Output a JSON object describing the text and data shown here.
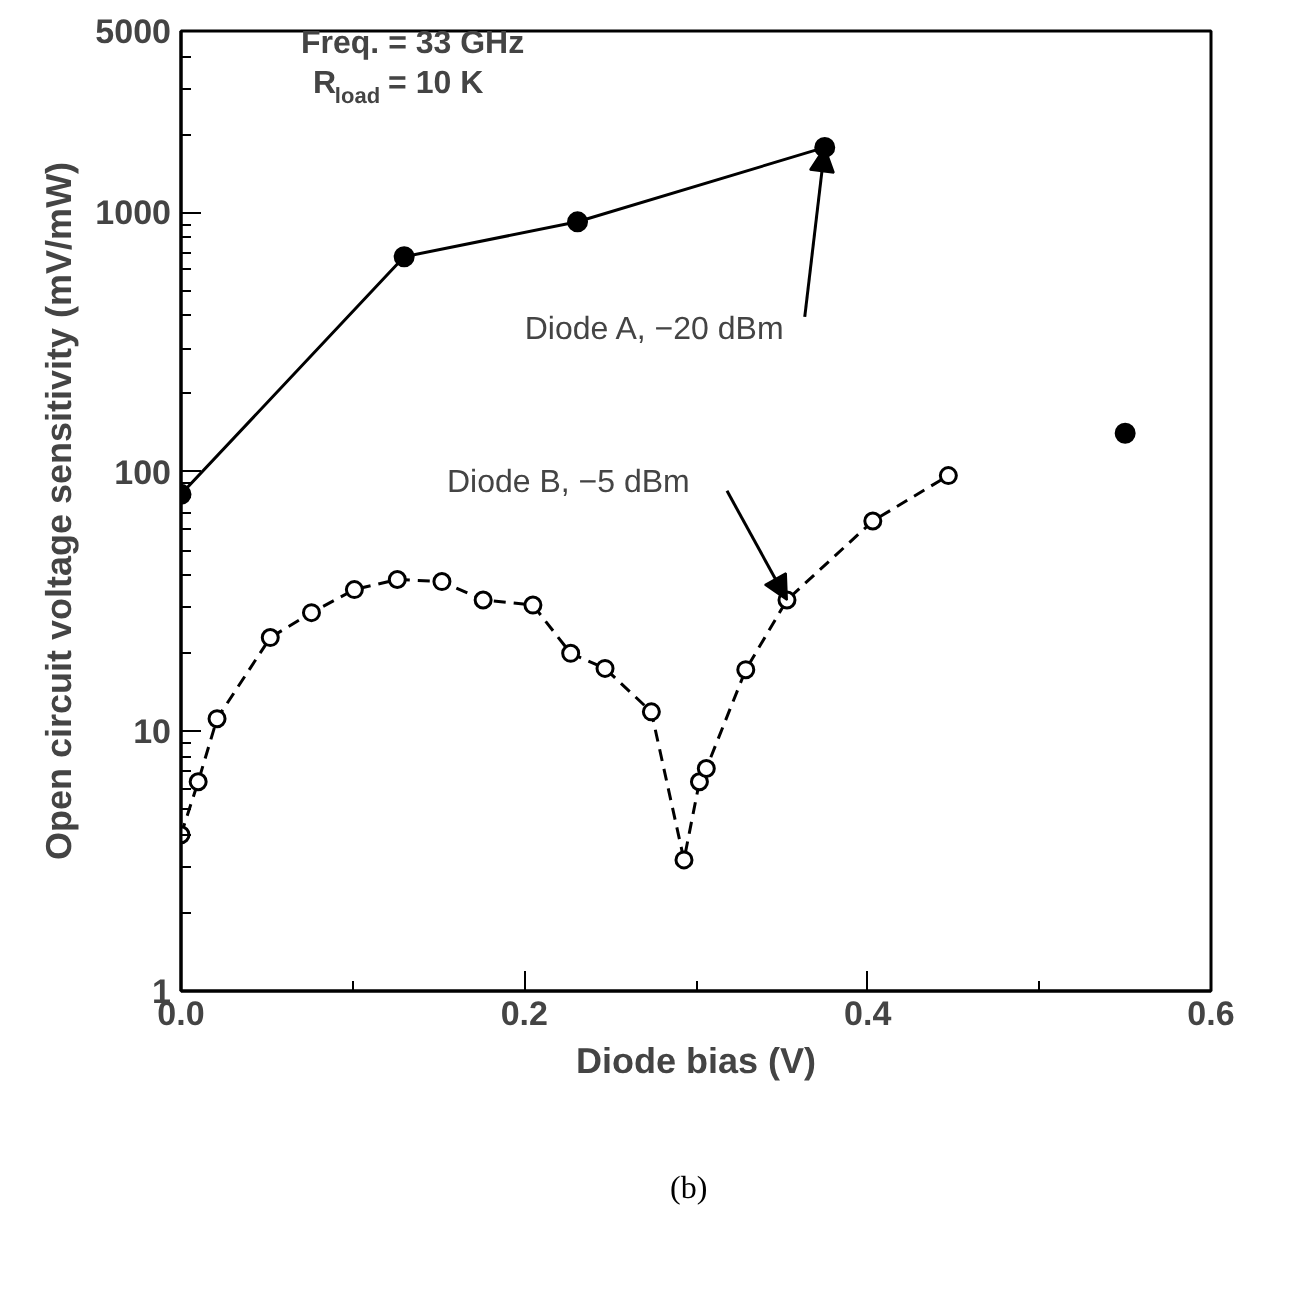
{
  "chart_data": {
    "type": "line",
    "xlabel": "Diode bias (V)",
    "ylabel": "Open circuit voltage sensitivity (mV/mW)",
    "xlim": [
      0,
      0.6
    ],
    "ylim": [
      1,
      5000
    ],
    "log": "y",
    "xticks": [
      {
        "value": 0,
        "label": "0.0"
      },
      {
        "value": 0.2,
        "label": "0.2"
      },
      {
        "value": 0.4,
        "label": "0.4"
      },
      {
        "value": 0.6,
        "label": "0.6"
      }
    ],
    "yticks": [
      1,
      10,
      100,
      1000,
      5000
    ],
    "grid": false,
    "series": [
      {
        "color": "#000000",
        "marker": "circle",
        "line_style": "solid",
        "x": [
          0.0,
          0.13,
          0.231,
          0.375
        ],
        "values": [
          82,
          675,
          920,
          1780
        ]
      },
      {
        "color": "#000000",
        "marker": "circle",
        "line_style": "dashed",
        "x": [
          0.0,
          0.01,
          0.021,
          0.052,
          0.076,
          0.101,
          0.126,
          0.152,
          0.176,
          0.205,
          0.227,
          0.247,
          0.274,
          0.293,
          0.302,
          0.306,
          0.329,
          0.353,
          0.403,
          0.447
        ],
        "values": [
          4.0,
          6.4,
          11.2,
          23.0,
          28.7,
          35.2,
          38.5,
          37.8,
          32.1,
          30.7,
          20.0,
          17.5,
          11.9,
          3.2,
          6.4,
          7.2,
          17.3,
          32.1,
          64.7,
          96.8
        ]
      },
      {
        "type": "scatter",
        "color": "#000000",
        "marker": "circle",
        "x": [
          0.55
        ],
        "values": [
          141
        ]
      }
    ],
    "annotations": [
      "Freq. = 33 GHz",
      "R$_{load}$ = 10 K",
      {
        "text": "Diode A, −20 dBm",
        "x": 0.375,
        "y": 1780
      },
      {
        "text": "Diode B, −5 dBm",
        "x": 0.353,
        "y": 32.1
      },
      "(b)"
    ]
  }
}
